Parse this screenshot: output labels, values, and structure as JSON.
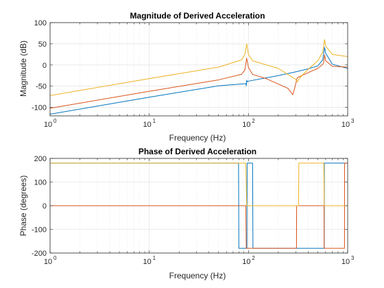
{
  "chart_data": [
    {
      "type": "line",
      "title": "Magnitude of Derived Acceleration",
      "xlabel": "Frequency (Hz)",
      "ylabel": "Magnitude (dB)",
      "xscale": "log",
      "xlim": [
        1,
        1000
      ],
      "ylim": [
        -120,
        100
      ],
      "x_ticks": [
        {
          "base": "10",
          "exp": "0"
        },
        {
          "base": "10",
          "exp": "1"
        },
        {
          "base": "10",
          "exp": "2"
        },
        {
          "base": "10",
          "exp": "3"
        }
      ],
      "y_ticks": [
        "-100",
        "-50",
        "0",
        "50",
        "100"
      ],
      "grid": true,
      "series": [
        {
          "color": "#0072BD",
          "x": [
            1,
            10,
            50,
            94,
            95,
            96,
            98,
            100,
            200,
            300,
            400,
            500,
            560,
            585,
            600,
            700,
            1000
          ],
          "y": [
            -116,
            -76,
            -49,
            -44,
            -49,
            -36,
            -40,
            -38,
            -25,
            -16,
            -9,
            -2,
            12,
            42,
            28,
            2,
            -8
          ]
        },
        {
          "color": "#D95319",
          "x": [
            1,
            10,
            50,
            85,
            92,
            96,
            100,
            110,
            150,
            250,
            280,
            290,
            310,
            400,
            500,
            570,
            585,
            600,
            700,
            1000
          ],
          "y": [
            -102,
            -62,
            -35,
            -22,
            -12,
            16,
            -6,
            -22,
            -32,
            -55,
            -70,
            -58,
            -30,
            -18,
            -8,
            3,
            24,
            10,
            -3,
            -5
          ]
        },
        {
          "color": "#EDB120",
          "x": [
            1,
            10,
            50,
            85,
            92,
            96,
            100,
            110,
            200,
            300,
            310,
            330,
            400,
            500,
            560,
            585,
            600,
            700,
            1000
          ],
          "y": [
            -72,
            -32,
            -5,
            12,
            25,
            50,
            25,
            10,
            -8,
            -34,
            -40,
            -30,
            -10,
            10,
            30,
            60,
            45,
            25,
            20
          ]
        }
      ]
    },
    {
      "type": "line",
      "title": "Phase of Derived Acceleration",
      "xlabel": "Frequency (Hz)",
      "ylabel": "Phase (degrees)",
      "xscale": "log",
      "xlim": [
        1,
        1000
      ],
      "ylim": [
        -200,
        200
      ],
      "x_ticks": [
        {
          "base": "10",
          "exp": "0"
        },
        {
          "base": "10",
          "exp": "1"
        },
        {
          "base": "10",
          "exp": "2"
        },
        {
          "base": "10",
          "exp": "3"
        }
      ],
      "y_ticks": [
        "-200",
        "-100",
        "0",
        "100",
        "200"
      ],
      "grid": true,
      "series": [
        {
          "color": "#0072BD",
          "x": [
            1,
            79.5,
            80,
            96.5,
            97,
            110,
            111,
            580,
            581,
            1000
          ],
          "y": [
            180,
            180,
            -180,
            -180,
            180,
            180,
            -180,
            -180,
            180,
            180
          ]
        },
        {
          "color": "#D95319",
          "x": [
            1,
            94,
            95,
            305,
            306,
            578,
            580,
            930,
            931,
            1000
          ],
          "y": [
            0,
            0,
            -180,
            -180,
            0,
            0,
            -180,
            -180,
            180,
            180
          ]
        },
        {
          "color": "#EDB120",
          "x": [
            1,
            94,
            96,
            320,
            322,
            575,
            580,
            590,
            1000
          ],
          "y": [
            180,
            180,
            0,
            0,
            180,
            180,
            0,
            0,
            0
          ]
        }
      ]
    }
  ]
}
